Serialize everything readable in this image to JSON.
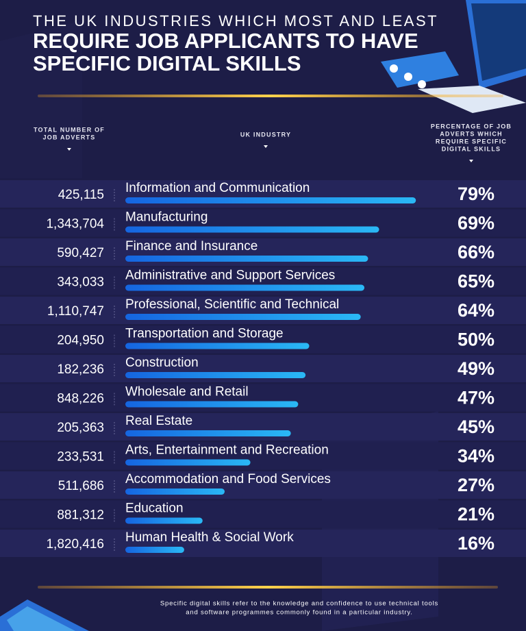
{
  "chart_data": {
    "type": "bar",
    "orientation": "horizontal",
    "supertitle": "THE UK INDUSTRIES WHICH MOST AND LEAST",
    "title_lines": [
      "REQUIRE JOB APPLICANTS TO HAVE",
      "SPECIFIC DIGITAL SKILLS"
    ],
    "column_headers": {
      "adverts": [
        "TOTAL NUMBER OF",
        "JOB ADVERTS"
      ],
      "industry": [
        "UK INDUSTRY"
      ],
      "percentage": [
        "PERCENTAGE OF JOB",
        "ADVERTS WHICH",
        "REQUIRE SPECIFIC",
        "DIGITAL SKILLS"
      ]
    },
    "categories": [
      "Information and Communication",
      "Manufacturing",
      "Finance and Insurance",
      "Administrative and Support Services",
      "Professional, Scientific and Technical",
      "Transportation and Storage",
      "Construction",
      "Wholesale and Retail",
      "Real Estate",
      "Arts, Entertainment and Recreation",
      "Accommodation and Food Services",
      "Education",
      "Human Health & Social Work"
    ],
    "job_adverts": [
      "425,115",
      "1,343,704",
      "590,427",
      "343,033",
      "1,110,747",
      "204,950",
      "182,236",
      "848,226",
      "205,363",
      "233,531",
      "511,686",
      "881,312",
      "1,820,416"
    ],
    "values": [
      79,
      69,
      66,
      65,
      64,
      50,
      49,
      47,
      45,
      34,
      27,
      21,
      16
    ],
    "value_labels": [
      "79%",
      "69%",
      "66%",
      "65%",
      "64%",
      "50%",
      "49%",
      "47%",
      "45%",
      "34%",
      "27%",
      "21%",
      "16%"
    ],
    "xlim": [
      0,
      100
    ],
    "colors": [
      "#1565e0",
      "#2ab8f5"
    ],
    "footnote": [
      "Specific digital skills refer to the knowledge and confidence to use technical tools",
      "and software programmes commonly found in a particular industry."
    ]
  }
}
